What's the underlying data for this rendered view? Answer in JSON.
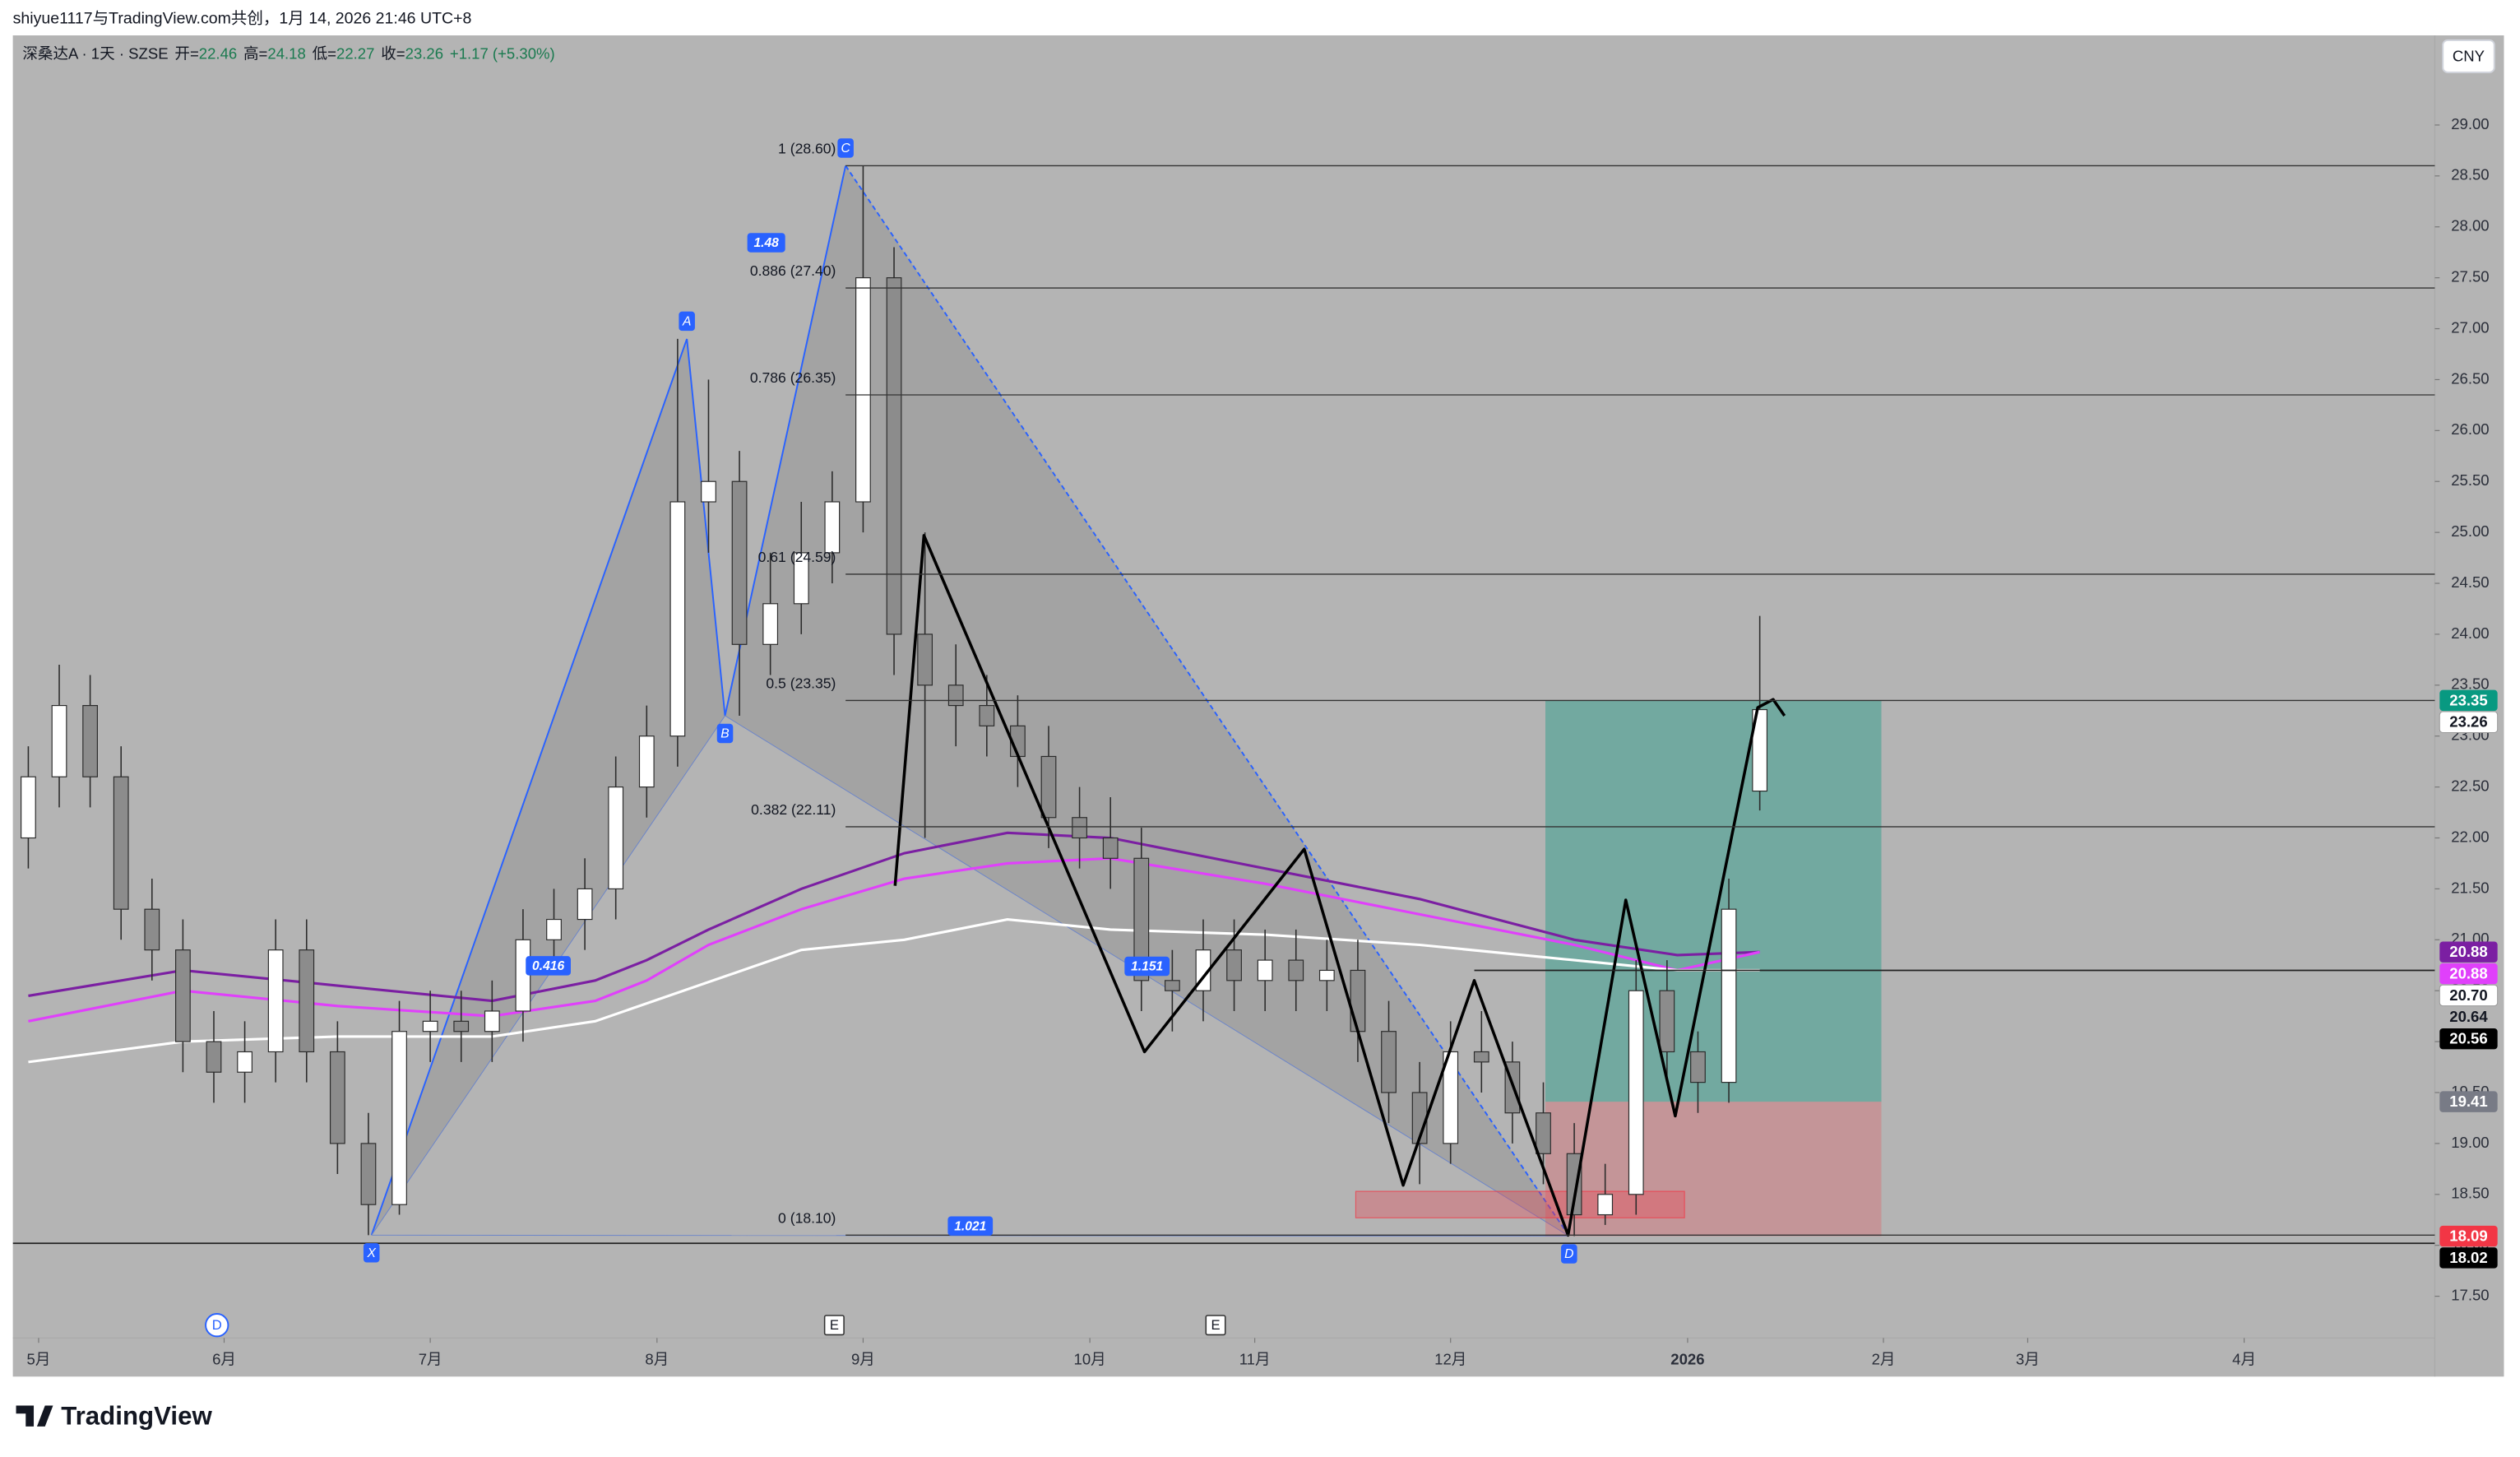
{
  "header": {
    "watermark": "shiyue1117与TradingView.com共创，1月 14, 2026 21:46 UTC+8",
    "symbol": "深桑达A · 1天 · SZSE",
    "ohlc_labels": [
      "开=",
      "高=",
      "低=",
      "收="
    ],
    "change": "+1.17 (+5.30%)",
    "currency": "CNY"
  },
  "footer": {
    "logo": "TradingView"
  },
  "chart_data": {
    "type": "candlestick",
    "x": [
      0,
      3,
      6,
      9,
      12,
      15,
      18,
      21,
      24,
      27,
      30,
      33,
      36,
      39,
      42,
      45,
      48,
      51,
      54,
      57,
      60,
      63,
      66,
      69,
      72,
      75,
      78,
      81,
      84,
      87,
      90,
      93,
      96,
      99,
      102,
      105,
      108,
      111,
      114,
      117,
      120,
      123,
      126,
      129,
      132,
      135,
      138,
      141,
      144,
      147,
      150,
      153,
      156,
      159,
      162,
      165,
      168
    ],
    "open": [
      22.0,
      22.6,
      23.3,
      22.6,
      21.3,
      20.9,
      20.0,
      19.7,
      19.9,
      20.9,
      19.9,
      19.0,
      18.4,
      20.1,
      20.2,
      20.1,
      20.3,
      21.0,
      21.2,
      21.5,
      22.5,
      23.0,
      25.3,
      25.5,
      23.9,
      24.3,
      24.8,
      25.3,
      27.5,
      24.0,
      23.5,
      23.3,
      23.1,
      22.8,
      22.2,
      22.0,
      21.8,
      20.6,
      20.5,
      20.9,
      20.6,
      20.8,
      20.6,
      20.7,
      20.1,
      19.5,
      19.0,
      19.9,
      19.8,
      19.3,
      18.9,
      18.3,
      18.5,
      20.5,
      19.9,
      19.6,
      22.46
    ],
    "high": [
      22.9,
      23.7,
      23.6,
      22.9,
      21.6,
      21.2,
      20.3,
      20.2,
      21.2,
      21.2,
      20.2,
      19.3,
      20.4,
      20.5,
      20.5,
      20.6,
      21.3,
      21.5,
      21.8,
      22.8,
      23.3,
      26.9,
      26.5,
      25.8,
      24.8,
      25.3,
      25.6,
      28.6,
      27.8,
      25.0,
      23.9,
      23.6,
      23.4,
      23.1,
      22.5,
      22.4,
      22.1,
      20.9,
      21.2,
      21.2,
      21.1,
      21.1,
      21.0,
      21.0,
      20.4,
      19.8,
      20.2,
      20.3,
      20.0,
      19.6,
      19.2,
      18.8,
      20.8,
      20.8,
      20.1,
      21.6,
      24.18
    ],
    "low": [
      21.7,
      22.3,
      22.3,
      21.0,
      20.6,
      19.7,
      19.4,
      19.4,
      19.6,
      19.6,
      18.7,
      18.1,
      18.3,
      19.8,
      19.8,
      19.8,
      20.0,
      20.7,
      20.9,
      21.2,
      22.2,
      22.7,
      24.8,
      23.2,
      23.6,
      24.0,
      24.5,
      25.0,
      23.6,
      22.0,
      22.9,
      22.8,
      22.5,
      21.9,
      21.7,
      21.5,
      20.3,
      20.1,
      20.2,
      20.3,
      20.3,
      20.3,
      20.3,
      19.8,
      19.2,
      18.6,
      18.8,
      19.5,
      19.0,
      18.6,
      18.09,
      18.2,
      18.3,
      19.6,
      19.3,
      19.4,
      22.27
    ],
    "close": [
      22.6,
      23.3,
      22.6,
      21.3,
      20.9,
      20.0,
      19.7,
      19.9,
      20.9,
      19.9,
      19.0,
      18.4,
      20.1,
      20.2,
      20.1,
      20.3,
      21.0,
      21.2,
      21.5,
      22.5,
      23.0,
      25.3,
      25.5,
      23.9,
      24.3,
      24.8,
      25.3,
      27.5,
      24.0,
      23.5,
      23.3,
      23.1,
      22.8,
      22.2,
      22.0,
      21.8,
      20.6,
      20.5,
      20.9,
      20.6,
      20.8,
      20.6,
      20.7,
      20.1,
      19.5,
      19.0,
      19.9,
      19.8,
      19.3,
      18.9,
      18.3,
      18.5,
      20.5,
      19.9,
      19.6,
      21.3,
      23.26
    ],
    "colors": {
      "up": "#ffffff",
      "down": "#8c8c8c",
      "wick": "#2b2b2b"
    },
    "xlim": [
      -1.5,
      233.5
    ],
    "xticks": [
      {
        "value": 1,
        "label": "5月"
      },
      {
        "value": 19,
        "label": "6月"
      },
      {
        "value": 39,
        "label": "7月"
      },
      {
        "value": 61,
        "label": "8月"
      },
      {
        "value": 81,
        "label": "9月"
      },
      {
        "value": 103,
        "label": "10月"
      },
      {
        "value": 119,
        "label": "11月"
      },
      {
        "value": 138,
        "label": "12月"
      },
      {
        "value": 161,
        "label": "2026"
      },
      {
        "value": 180,
        "label": "2月"
      },
      {
        "value": 194,
        "label": "3月"
      },
      {
        "value": 215,
        "label": "4月"
      }
    ],
    "ylim": [
      17.09,
      29.88
    ],
    "yticks": [
      {
        "value": 17.5,
        "label": "17.50"
      },
      {
        "value": 18,
        "label": "18.00"
      },
      {
        "value": 18.5,
        "label": "18.50"
      },
      {
        "value": 19,
        "label": "19.00"
      },
      {
        "value": 19.5,
        "label": "19.50"
      },
      {
        "value": 20,
        "label": "20.00"
      },
      {
        "value": 20.5,
        "label": "20.50"
      },
      {
        "value": 21,
        "label": "21.00"
      },
      {
        "value": 21.5,
        "label": "21.50"
      },
      {
        "value": 22,
        "label": "22.00"
      },
      {
        "value": 22.5,
        "label": "22.50"
      },
      {
        "value": 23,
        "label": "23.00"
      },
      {
        "value": 23.5,
        "label": "23.50"
      },
      {
        "value": 24,
        "label": "24.00"
      },
      {
        "value": 24.5,
        "label": "24.50"
      },
      {
        "value": 25,
        "label": "25.00"
      },
      {
        "value": 25.5,
        "label": "25.50"
      },
      {
        "value": 26,
        "label": "26.00"
      },
      {
        "value": 26.5,
        "label": "26.50"
      },
      {
        "value": 27,
        "label": "27.00"
      },
      {
        "value": 27.5,
        "label": "27.50"
      },
      {
        "value": 28,
        "label": "28.00"
      },
      {
        "value": 28.5,
        "label": "28.50"
      },
      {
        "value": 29,
        "label": "29.00"
      }
    ],
    "grid": false,
    "moving_averages": [
      {
        "color": "#7b1fa2",
        "x": [
          0,
          15,
          30,
          45,
          55,
          60,
          66,
          75,
          85,
          95,
          105,
          120,
          135,
          150,
          160,
          168
        ],
        "values": [
          20.45,
          20.7,
          20.55,
          20.4,
          20.6,
          20.8,
          21.1,
          21.5,
          21.85,
          22.05,
          22.0,
          21.7,
          21.4,
          21.0,
          20.85,
          20.88
        ]
      },
      {
        "color": "#e040fb",
        "x": [
          0,
          15,
          30,
          45,
          55,
          60,
          66,
          75,
          85,
          95,
          105,
          120,
          135,
          150,
          160,
          168
        ],
        "values": [
          20.2,
          20.5,
          20.35,
          20.25,
          20.4,
          20.6,
          20.95,
          21.3,
          21.6,
          21.75,
          21.8,
          21.55,
          21.25,
          20.95,
          20.7,
          20.88
        ]
      },
      {
        "color": "#ffffff",
        "x": [
          0,
          15,
          30,
          45,
          55,
          65,
          75,
          85,
          95,
          105,
          120,
          135,
          150,
          160,
          168
        ],
        "values": [
          19.8,
          20.0,
          20.05,
          20.05,
          20.2,
          20.55,
          20.9,
          21.0,
          21.2,
          21.1,
          21.05,
          20.95,
          20.8,
          20.7,
          20.7
        ]
      }
    ],
    "pattern": {
      "points": [
        {
          "label": "X",
          "x": 33.3,
          "y": 18.1
        },
        {
          "label": "A",
          "x": 63.9,
          "y": 26.9
        },
        {
          "label": "B",
          "x": 67.6,
          "y": 23.2
        },
        {
          "label": "C",
          "x": 79.3,
          "y": 28.6
        },
        {
          "label": "D",
          "x": 149.5,
          "y": 18.09
        }
      ],
      "ratios": [
        "0.416",
        "1.48",
        "1.021",
        "1.151"
      ]
    },
    "fib_x_start": 79.3,
    "fib_levels": [
      {
        "label": "1 (28.60)",
        "value": 28.6
      },
      {
        "label": "0.886 (27.40)",
        "value": 27.4
      },
      {
        "label": "0.786 (26.35)",
        "value": 26.35
      },
      {
        "label": "0.61  (24.59)",
        "value": 24.59
      },
      {
        "label": "0.5 (23.35)",
        "value": 23.35
      },
      {
        "label": "0.382 (22.11)",
        "value": 22.11
      },
      {
        "label": "0 (18.10)",
        "value": 18.1
      }
    ],
    "zigzag": {
      "x": [
        84.1,
        86.9,
        108.3,
        123.8,
        133.4,
        140.3,
        149.4,
        155.0,
        159.8,
        167.8,
        169.3,
        170.4
      ],
      "values": [
        21.53,
        24.97,
        19.9,
        21.89,
        18.59,
        20.6,
        18.1,
        21.39,
        19.27,
        23.28,
        23.36,
        23.2
      ]
    },
    "position": {
      "x": [
        147.2,
        179.8
      ],
      "target": 23.35,
      "entry": 19.41,
      "stop": 18.09
    },
    "zone": {
      "x": [
        128.8,
        160.7
      ],
      "top": 18.53,
      "bottom": 18.27
    },
    "horizontal_lines": [
      {
        "value": 20.7,
        "x_start": 140.3
      },
      {
        "value": 18.02,
        "x_start": -1.5
      }
    ],
    "price_labels": [
      {
        "value": 23.35,
        "label": "23.35",
        "bg": "#089981",
        "fg": "#ffffff"
      },
      {
        "value": 23.26,
        "label": "23.26",
        "bg": "#ffffff",
        "fg": "#131722"
      },
      {
        "value": 20.88,
        "label": "20.88",
        "bg": "#7b1fa2",
        "fg": "#ffffff"
      },
      {
        "value": 20.88,
        "label": "20.88",
        "bg": "#e040fb",
        "fg": "#ffffff"
      },
      {
        "value": 20.7,
        "label": "20.70",
        "bg": "#ffffff",
        "fg": "#131722"
      },
      {
        "value": 20.64,
        "label": "20.64",
        "bg": "none",
        "fg": "#131722"
      },
      {
        "value": 20.56,
        "label": "20.56",
        "bg": "#000000",
        "fg": "#ffffff"
      },
      {
        "value": 19.41,
        "label": "19.41",
        "bg": "#787b86",
        "fg": "#ffffff"
      },
      {
        "value": 18.09,
        "label": "18.09",
        "bg": "#f23645",
        "fg": "#ffffff"
      },
      {
        "value": 18.02,
        "label": "18.02",
        "bg": "#000000",
        "fg": "#ffffff"
      }
    ],
    "events": [
      {
        "label": "D",
        "x": 18.3
      },
      {
        "label": "E",
        "x": 78.2
      },
      {
        "label": "E",
        "x": 115.2
      }
    ]
  }
}
